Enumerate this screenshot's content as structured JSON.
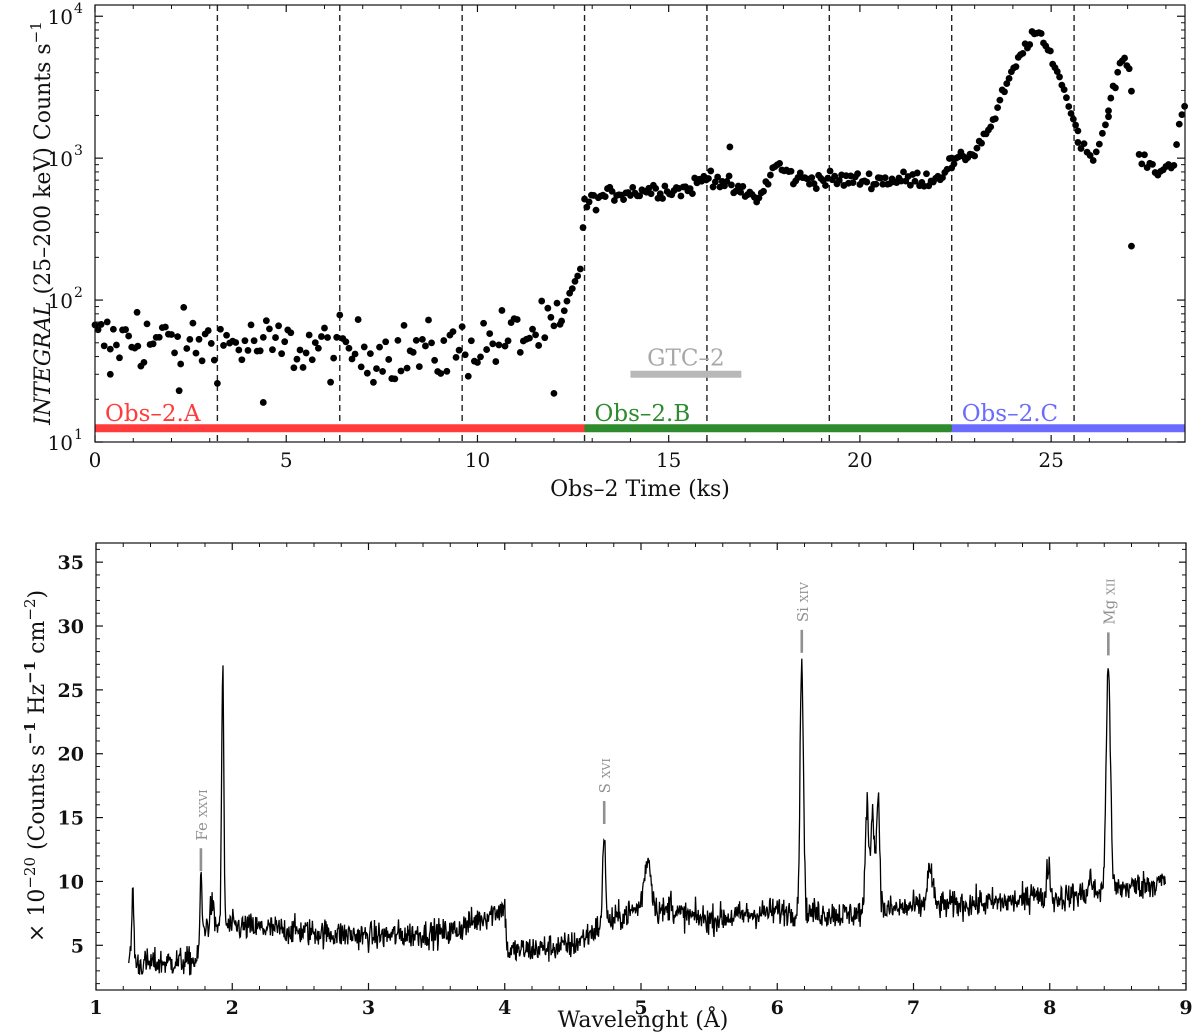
{
  "chart_data": [
    {
      "type": "scatter",
      "id": "top",
      "xlabel": "Obs–2 Time (ks)",
      "ylabel": "INTEGRAL (25–200 keV) Counts s−1",
      "ylabel_parts": {
        "italic": "INTEGRAL",
        "main": " (25–200 keV) Counts s",
        "sup": "−1"
      },
      "xlim": [
        0,
        28.5
      ],
      "ylim": [
        10,
        12000
      ],
      "yscale": "log",
      "x_ticks": [
        0,
        5,
        10,
        15,
        20,
        25
      ],
      "x_tick_labels": [
        "0",
        "5",
        "10",
        "15",
        "20",
        "25"
      ],
      "y_ticks": [
        {
          "value": 10,
          "base": "10",
          "exp": "1"
        },
        {
          "value": 100,
          "base": "10",
          "exp": "2"
        },
        {
          "value": 1000,
          "base": "10",
          "exp": "3"
        },
        {
          "value": 10000,
          "base": "10",
          "exp": "4"
        }
      ],
      "vlines": [
        3.2,
        6.4,
        9.6,
        12.8,
        16.0,
        19.2,
        22.4,
        25.6
      ],
      "spans": [
        {
          "label": "Obs–2.A",
          "start": 0,
          "end": 12.8,
          "y": 12.5,
          "color": "#ff3b3b"
        },
        {
          "label": "Obs–2.B",
          "start": 12.8,
          "end": 22.4,
          "y": 12.5,
          "color": "#2e8b2e"
        },
        {
          "label": "Obs–2.C",
          "start": 22.4,
          "end": 28.5,
          "y": 12.5,
          "color": "#6b6bff"
        }
      ],
      "gtc": {
        "label": "GTC–2",
        "start": 14.0,
        "end": 16.9,
        "y": 30,
        "color": "#b8b8b8"
      },
      "series": [
        {
          "marker": "dot",
          "color": "#000000",
          "segments": [
            {
              "x0": 0.0,
              "x1": 12.2,
              "level": [
                [
                  0,
                  52
                ],
                [
                  3,
                  50
                ],
                [
                  6,
                  45
                ],
                [
                  9,
                  42
                ],
                [
                  11,
                  55
                ],
                [
                  12.2,
                  62
                ]
              ],
              "scatter": 0.45,
              "step": 0.08
            },
            {
              "x0": 12.2,
              "x1": 12.8,
              "level": [
                [
                  12.2,
                  70
                ],
                [
                  12.5,
                  125
                ],
                [
                  12.7,
                  170
                ],
                [
                  12.8,
                  420
                ]
              ],
              "scatter": 0.05,
              "step": 0.07
            },
            {
              "x0": 12.8,
              "x1": 22.4,
              "level": [
                [
                  12.8,
                  470
                ],
                [
                  13.5,
                  560
                ],
                [
                  14.5,
                  600
                ],
                [
                  15.5,
                  600
                ],
                [
                  16.1,
                  760
                ],
                [
                  16.8,
                  580
                ],
                [
                  17.4,
                  520
                ],
                [
                  17.8,
                  900
                ],
                [
                  18.3,
                  720
                ],
                [
                  19.5,
                  700
                ],
                [
                  21,
                  700
                ],
                [
                  22.0,
                  720
                ],
                [
                  22.4,
                  930
                ]
              ],
              "scatter": 0.12,
              "step": 0.06
            },
            {
              "x0": 22.4,
              "x1": 25.7,
              "level": [
                [
                  22.4,
                  920
                ],
                [
                  23.0,
                  1100
                ],
                [
                  23.5,
                  1800
                ],
                [
                  24.0,
                  4000
                ],
                [
                  24.6,
                  7800
                ],
                [
                  25.0,
                  5200
                ],
                [
                  25.3,
                  3200
                ],
                [
                  25.6,
                  1700
                ]
              ],
              "scatter": 0.08,
              "step": 0.06
            },
            {
              "x0": 25.7,
              "x1": 26.5,
              "level": [
                [
                  25.7,
                  1300
                ],
                [
                  26.0,
                  1050
                ],
                [
                  26.2,
                  1100
                ],
                [
                  26.5,
                  2000
                ]
              ],
              "scatter": 0.08,
              "step": 0.08
            },
            {
              "x0": 26.5,
              "x1": 27.1,
              "level": [
                [
                  26.5,
                  2200
                ],
                [
                  26.8,
                  4500
                ],
                [
                  27.0,
                  4800
                ],
                [
                  27.1,
                  3000
                ]
              ],
              "scatter": 0.1,
              "step": 0.06
            },
            {
              "x0": 27.3,
              "x1": 28.5,
              "level": [
                [
                  27.3,
                  1000
                ],
                [
                  27.8,
                  800
                ],
                [
                  28.2,
                  900
                ],
                [
                  28.5,
                  2500
                ]
              ],
              "scatter": 0.08,
              "step": 0.07
            }
          ],
          "extra_points": [
            [
              27.1,
              240
            ],
            [
              16.6,
              1200
            ],
            [
              1.1,
              82
            ],
            [
              0.4,
              30
            ],
            [
              12.0,
              22
            ],
            [
              2.2,
              23
            ],
            [
              4.4,
              19
            ]
          ]
        }
      ]
    },
    {
      "type": "line",
      "id": "bottom",
      "xlabel": "Wavelenght (Å)",
      "ylabel": "× 10−20 (Counts s−1 Hz−1 cm−2)",
      "ylabel_parts": {
        "prefix": "× 10",
        "prefix_sup": "−20",
        "a": " (Counts s",
        "a_sup": "−1",
        "b": " Hz",
        "b_sup": "−1",
        "c": " cm",
        "c_sup": "−2",
        "end": ")"
      },
      "xlim": [
        1,
        9
      ],
      "ylim": [
        1.5,
        36.5
      ],
      "x_ticks": [
        1,
        2,
        3,
        4,
        5,
        6,
        7,
        8,
        9
      ],
      "x_tick_labels": [
        "1",
        "2",
        "3",
        "4",
        "5",
        "6",
        "7",
        "8",
        "9"
      ],
      "y_ticks": [
        5,
        10,
        15,
        20,
        25,
        30,
        35
      ],
      "y_tick_labels": [
        "5",
        "10",
        "15",
        "20",
        "25",
        "30",
        "35"
      ],
      "x_range": [
        1.24,
        8.85
      ],
      "continuum": [
        [
          1.24,
          3.5
        ],
        [
          1.75,
          3.8
        ],
        [
          1.8,
          6.5
        ],
        [
          2.0,
          6.5
        ],
        [
          3.0,
          5.7
        ],
        [
          3.6,
          6.0
        ],
        [
          3.8,
          7.0
        ],
        [
          4.0,
          8.0
        ],
        [
          4.02,
          4.5
        ],
        [
          4.5,
          5.0
        ],
        [
          4.7,
          6.5
        ],
        [
          5.0,
          8.0
        ],
        [
          5.5,
          7.0
        ],
        [
          6.0,
          7.7
        ],
        [
          6.5,
          7.4
        ],
        [
          7.0,
          8.0
        ],
        [
          7.5,
          8.3
        ],
        [
          8.0,
          8.6
        ],
        [
          8.85,
          10.0
        ]
      ],
      "lines": [
        {
          "x": 1.27,
          "height": 9.2,
          "width": 0.008
        },
        {
          "x": 1.77,
          "height": 10.2,
          "width": 0.008
        },
        {
          "x": 1.85,
          "height": 8.2,
          "width": 0.012
        },
        {
          "x": 1.93,
          "height": 26.5,
          "width": 0.008
        },
        {
          "x": 4.73,
          "height": 14.0,
          "width": 0.01
        },
        {
          "x": 5.05,
          "height": 11.8,
          "width": 0.025
        },
        {
          "x": 5.22,
          "height": 8.5,
          "width": 0.012
        },
        {
          "x": 6.18,
          "height": 27.5,
          "width": 0.012
        },
        {
          "x": 6.66,
          "height": 16.3,
          "width": 0.012
        },
        {
          "x": 6.7,
          "height": 16.0,
          "width": 0.012
        },
        {
          "x": 6.74,
          "height": 16.8,
          "width": 0.012
        },
        {
          "x": 7.12,
          "height": 11.0,
          "width": 0.02
        },
        {
          "x": 7.88,
          "height": 9.5,
          "width": 0.02
        },
        {
          "x": 7.99,
          "height": 11.5,
          "width": 0.012
        },
        {
          "x": 8.43,
          "height": 27.3,
          "width": 0.015
        },
        {
          "x": 8.3,
          "height": 10.5,
          "width": 0.01
        }
      ],
      "noise": 0.55,
      "step": 0.004,
      "annotations": [
        {
          "label": "Fe xxvi",
          "main": "Fe ",
          "sc": "xxvi",
          "x": 1.77,
          "mark_y": [
            10.8,
            12.6
          ],
          "text_y": 13.2
        },
        {
          "label": "S xvi",
          "main": "S ",
          "sc": "xvi",
          "x": 4.73,
          "mark_y": [
            14.5,
            16.3
          ],
          "text_y": 16.9
        },
        {
          "label": "Si xiv",
          "main": "Si ",
          "sc": "xiv",
          "x": 6.18,
          "mark_y": [
            27.9,
            29.7
          ],
          "text_y": 30.3
        },
        {
          "label": "Mg xii",
          "main": "Mg ",
          "sc": "xii",
          "x": 8.43,
          "mark_y": [
            27.7,
            29.5
          ],
          "text_y": 30.1
        }
      ],
      "annotation_color": "#909090",
      "series": [
        {
          "color": "#000000"
        }
      ]
    }
  ]
}
